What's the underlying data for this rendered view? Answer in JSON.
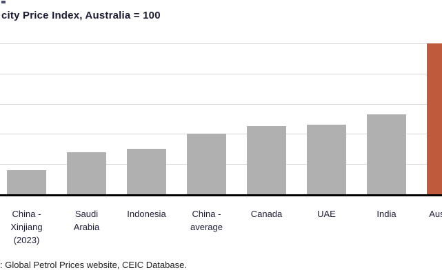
{
  "source": ": Global Petrol Prices website, CEIC Database.",
  "colors": {
    "bar": "#b0b0b0",
    "highlight": "#c05a3c",
    "gridline": "#d8d8d8",
    "axis": "#000000",
    "title_text": "#1a1a33",
    "label_text": "#1c1c35"
  },
  "chart_data": {
    "type": "bar",
    "title": "city Price Index, Australia = 100",
    "categories": [
      [
        "China -",
        "Xinjiang",
        "(2023)"
      ],
      [
        "Saudi",
        "Arabia"
      ],
      [
        "Indonesia"
      ],
      [
        "China -",
        "average"
      ],
      [
        "Canada"
      ],
      [
        "UAE"
      ],
      [
        "India"
      ],
      [
        "Australia"
      ]
    ],
    "values": [
      16,
      28,
      30,
      40,
      45,
      46,
      53,
      100
    ],
    "highlight_index": 7,
    "xlabel": "",
    "ylabel": "",
    "ylim": [
      0,
      100
    ],
    "grid_values": [
      20,
      40,
      60,
      80,
      100
    ],
    "y_tick_labels_visible": false,
    "legend": "none",
    "notes_visible": [
      "title cropped at left edge of screenshot",
      "last bar cropped at right edge"
    ]
  }
}
